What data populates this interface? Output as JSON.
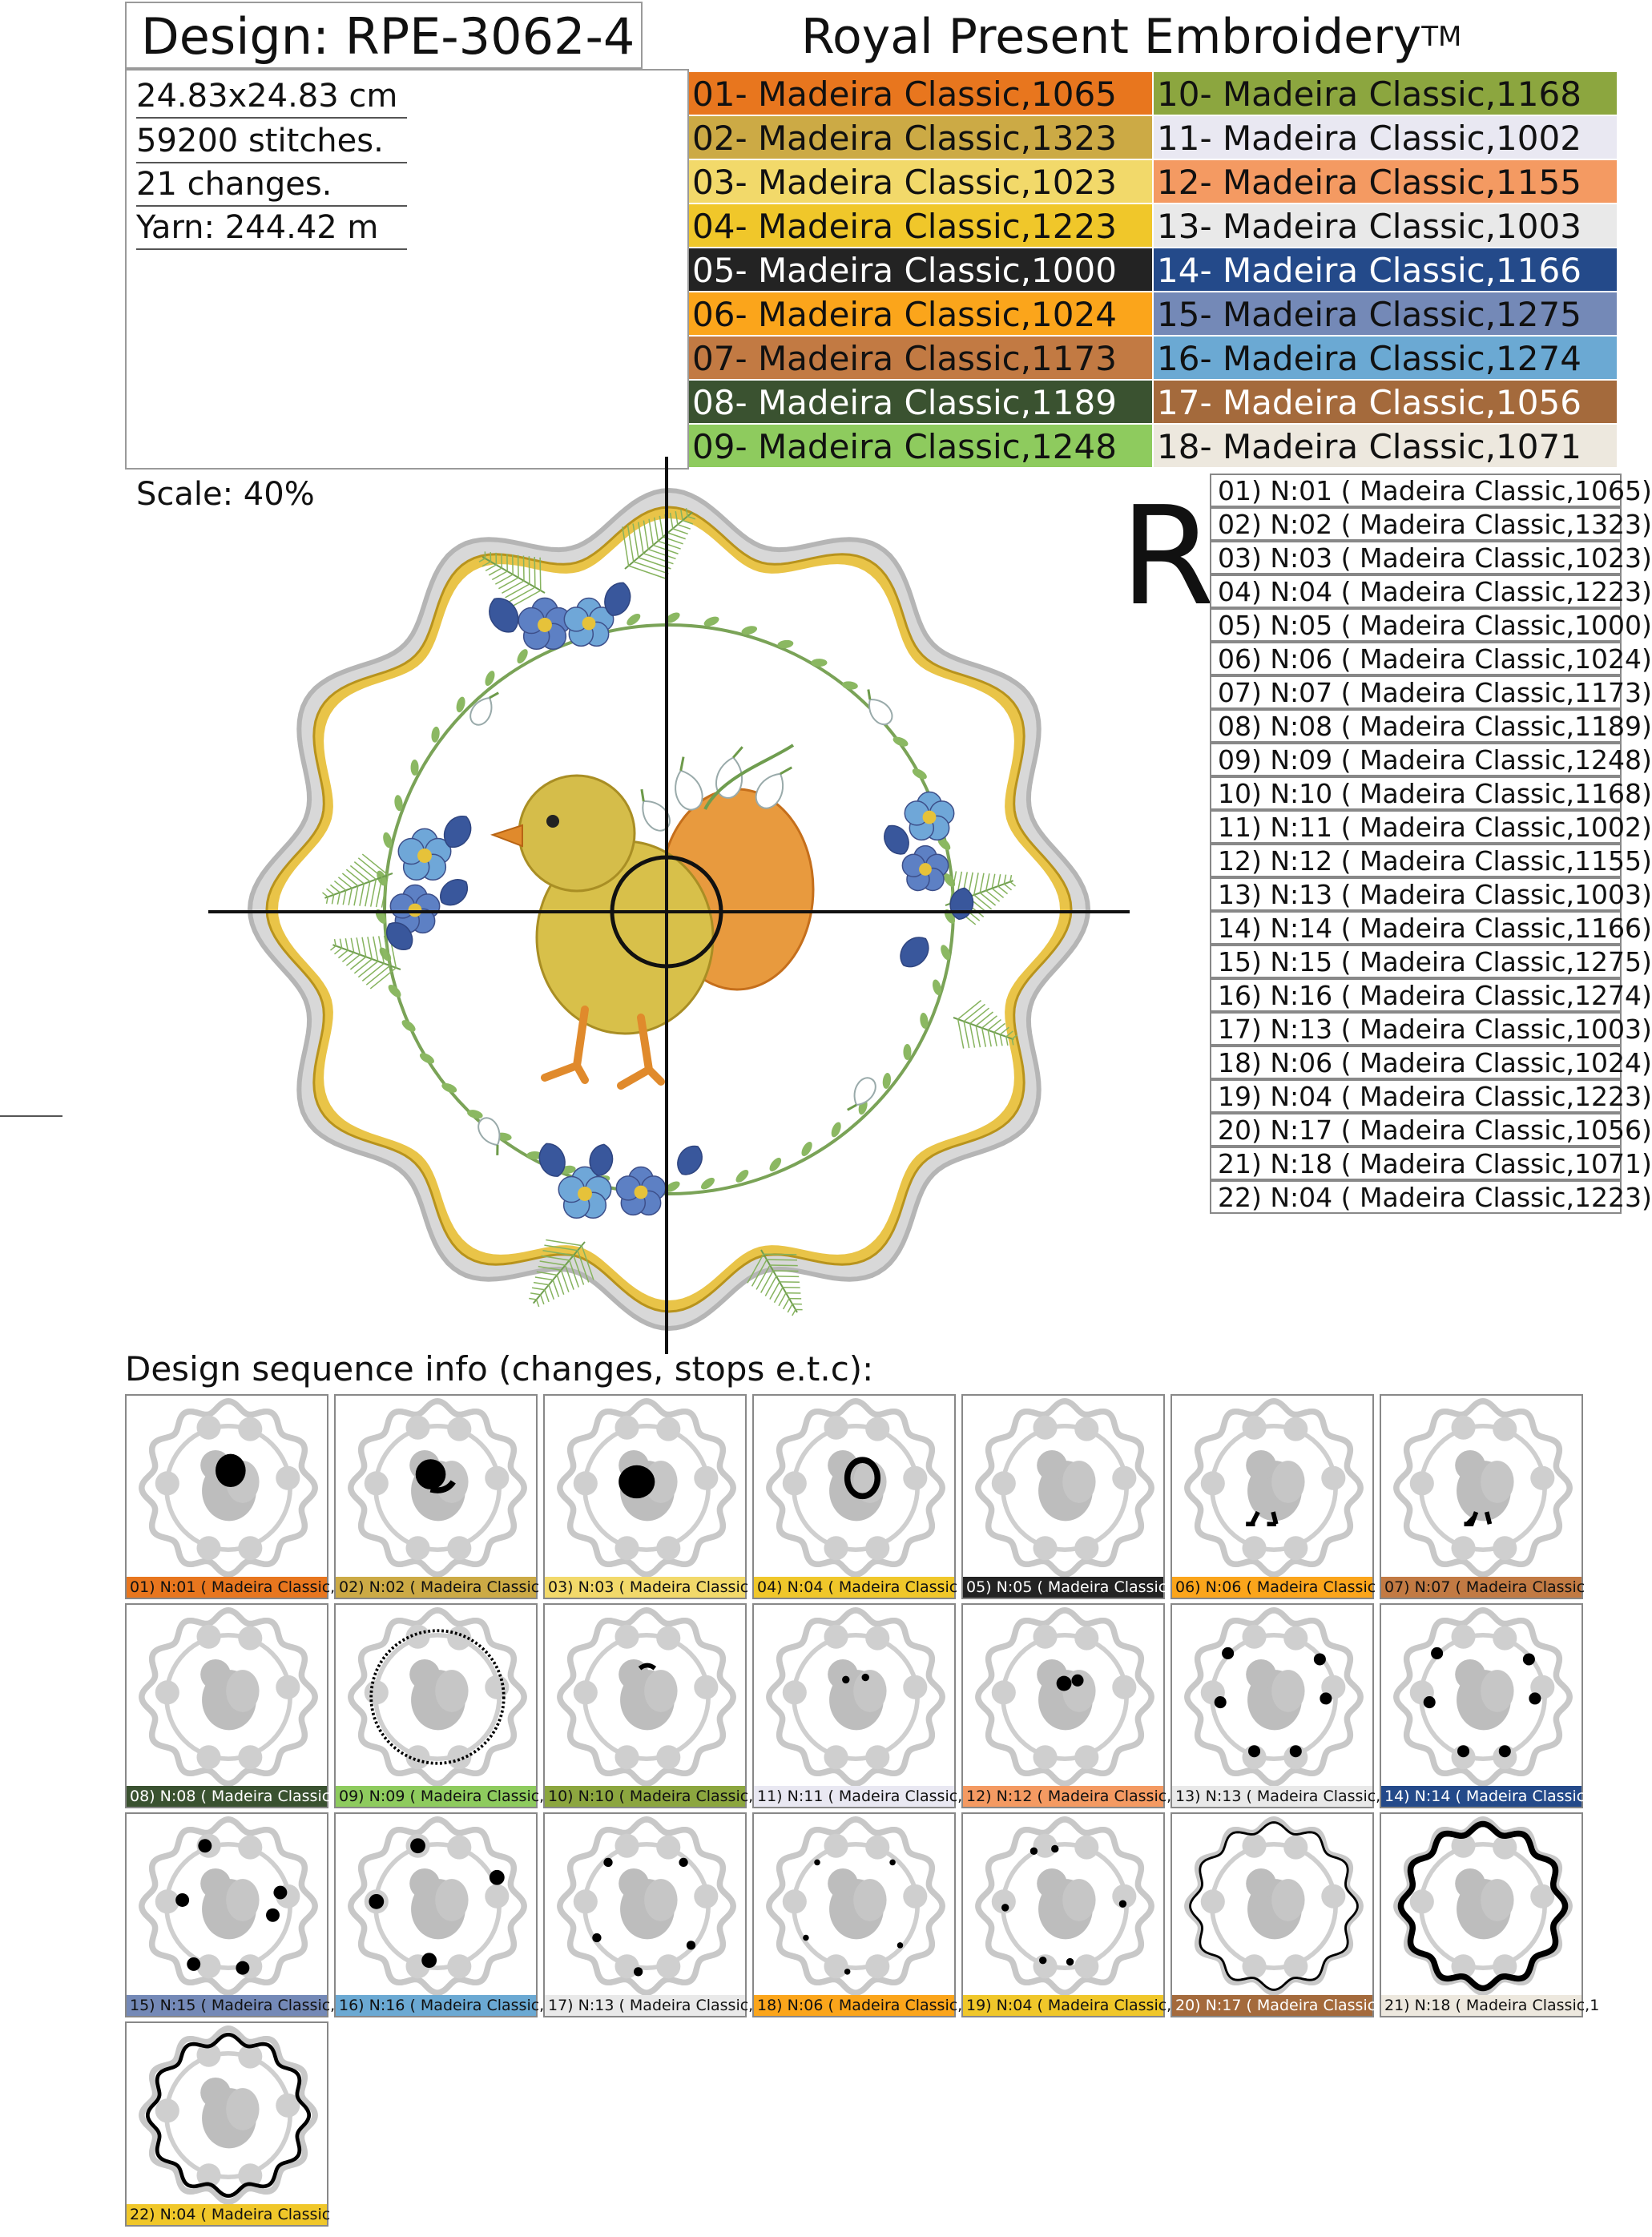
{
  "header": {
    "design_title": "Design: RPE-3062-4",
    "brand": "Royal Present Embroidery",
    "trademark": "TM"
  },
  "info": {
    "size": "24.83x24.83 cm",
    "stitches": "59200 stitches.",
    "changes": "21 changes.",
    "yarn": "Yarn: 244.42 m"
  },
  "scale": "Scale: 40%",
  "r_mark": "R",
  "color_table": [
    {
      "label": "01- Madeira Classic,1065",
      "color": "#E8761E",
      "text": "#111111"
    },
    {
      "label": "02- Madeira Classic,1323",
      "color": "#CCAA45",
      "text": "#111111"
    },
    {
      "label": "03- Madeira Classic,1023",
      "color": "#F2D96A",
      "text": "#111111"
    },
    {
      "label": "04- Madeira Classic,1223",
      "color": "#F0C72A",
      "text": "#111111"
    },
    {
      "label": "05- Madeira Classic,1000",
      "color": "#232323",
      "text": "#ffffff"
    },
    {
      "label": "06- Madeira Classic,1024",
      "color": "#FBA51B",
      "text": "#111111"
    },
    {
      "label": "07- Madeira Classic,1173",
      "color": "#C27A43",
      "text": "#111111"
    },
    {
      "label": "08- Madeira Classic,1189",
      "color": "#3A5230",
      "text": "#ffffff"
    },
    {
      "label": "09- Madeira Classic,1248",
      "color": "#8ECB5E",
      "text": "#111111"
    },
    {
      "label": "10- Madeira Classic,1168",
      "color": "#8CA63F",
      "text": "#111111"
    },
    {
      "label": "11- Madeira Classic,1002",
      "color": "#E9E8F2",
      "text": "#111111"
    },
    {
      "label": "12- Madeira Classic,1155",
      "color": "#F49A62",
      "text": "#111111"
    },
    {
      "label": "13- Madeira Classic,1003",
      "color": "#E9E9E9",
      "text": "#111111"
    },
    {
      "label": "14- Madeira Classic,1166",
      "color": "#244A8A",
      "text": "#ffffff"
    },
    {
      "label": "15- Madeira Classic,1275",
      "color": "#7489B7",
      "text": "#111111"
    },
    {
      "label": "16- Madeira Classic,1274",
      "color": "#6BA9D3",
      "text": "#111111"
    },
    {
      "label": "17- Madeira Classic,1056",
      "color": "#A46A3C",
      "text": "#ffffff"
    },
    {
      "label": "18- Madeira Classic,1071",
      "color": "#EDE8DE",
      "text": "#111111"
    }
  ],
  "sequence_list": [
    "01) N:01 ( Madeira Classic,1065)",
    "02) N:02 ( Madeira Classic,1323)",
    "03) N:03 ( Madeira Classic,1023)",
    "04) N:04 ( Madeira Classic,1223)",
    "05) N:05 ( Madeira Classic,1000)",
    "06) N:06 ( Madeira Classic,1024)",
    "07) N:07 ( Madeira Classic,1173)",
    "08) N:08 ( Madeira Classic,1189)",
    "09) N:09 ( Madeira Classic,1248)",
    "10) N:10 ( Madeira Classic,1168)",
    "11) N:11 ( Madeira Classic,1002)",
    "12) N:12 ( Madeira Classic,1155)",
    "13) N:13 ( Madeira Classic,1003)",
    "14) N:14 ( Madeira Classic,1166)",
    "15) N:15 ( Madeira Classic,1275)",
    "16) N:16 ( Madeira Classic,1274)",
    "17) N:13 ( Madeira Classic,1003)",
    "18) N:06 ( Madeira Classic,1024)",
    "19) N:04 ( Madeira Classic,1223)",
    "20) N:17 ( Madeira Classic,1056)",
    "21) N:18 ( Madeira Classic,1071)",
    "22) N:04 ( Madeira Classic,1223)"
  ],
  "sequence_title": "Design sequence info (changes, stops e.t.c):",
  "thumbnails": [
    {
      "label": "01) N:01 ( Madeira Classic,1",
      "color": "#E8761E",
      "text": "#111111"
    },
    {
      "label": "02) N:02 ( Madeira Classic",
      "color": "#CCAA45",
      "text": "#111111"
    },
    {
      "label": "03) N:03 ( Madeira Classic",
      "color": "#F2D96A",
      "text": "#111111"
    },
    {
      "label": "04) N:04 ( Madeira Classic",
      "color": "#F0C72A",
      "text": "#111111"
    },
    {
      "label": "05) N:05 ( Madeira Classic",
      "color": "#232323",
      "text": "#ffffff"
    },
    {
      "label": "06) N:06 ( Madeira Classic",
      "color": "#FBA51B",
      "text": "#111111"
    },
    {
      "label": "07) N:07 ( Madeira Classic",
      "color": "#C27A43",
      "text": "#111111"
    },
    {
      "label": "08) N:08 ( Madeira Classic",
      "color": "#3A5230",
      "text": "#ffffff"
    },
    {
      "label": "09) N:09 ( Madeira Classic,",
      "color": "#8ECB5E",
      "text": "#111111"
    },
    {
      "label": "10) N:10 ( Madeira Classic,1",
      "color": "#8CA63F",
      "text": "#111111"
    },
    {
      "label": "11) N:11 ( Madeira Classic,10",
      "color": "#E9E8F2",
      "text": "#111111"
    },
    {
      "label": "12) N:12 ( Madeira Classic,1",
      "color": "#F49A62",
      "text": "#111111"
    },
    {
      "label": "13) N:13 ( Madeira Classic,1",
      "color": "#E9E9E9",
      "text": "#111111"
    },
    {
      "label": "14) N:14 ( Madeira Classic,1",
      "color": "#244A8A",
      "text": "#ffffff"
    },
    {
      "label": "15) N:15 ( Madeira Classic,1",
      "color": "#7489B7",
      "text": "#111111"
    },
    {
      "label": "16) N:16 ( Madeira Classic,1",
      "color": "#6BA9D3",
      "text": "#111111"
    },
    {
      "label": "17) N:13 ( Madeira Classic,1",
      "color": "#E9E9E9",
      "text": "#111111"
    },
    {
      "label": "18) N:06 ( Madeira Classic,",
      "color": "#FBA51B",
      "text": "#111111"
    },
    {
      "label": "19) N:04 ( Madeira Classic,",
      "color": "#F0C72A",
      "text": "#111111"
    },
    {
      "label": "20) N:17 ( Madeira Classic,",
      "color": "#A46A3C",
      "text": "#ffffff"
    },
    {
      "label": "21) N:18 ( Madeira Classic,1",
      "color": "#EDE8DE",
      "text": "#111111"
    },
    {
      "label": "22) N:04 ( Madeira Classic",
      "color": "#F0C72A",
      "text": "#111111"
    }
  ]
}
